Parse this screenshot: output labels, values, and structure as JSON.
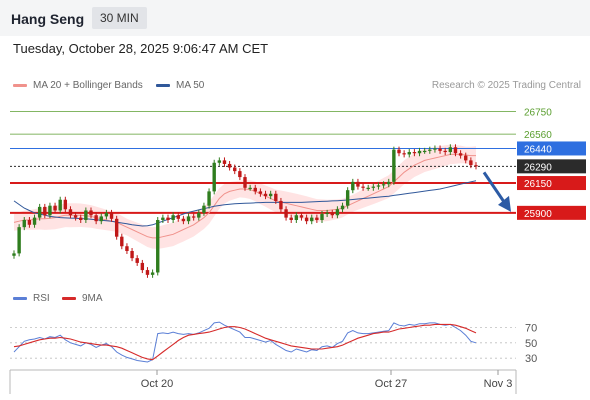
{
  "header": {
    "title": "Hang Seng",
    "timeframe": "30 MIN"
  },
  "date_line": "Tuesday, October 28, 2025 9:06:47 AM CET",
  "legend_main": [
    {
      "label": "MA 20 + Bollinger Bands",
      "color": "#f0928c"
    },
    {
      "label": "MA 50",
      "color": "#30589a"
    }
  ],
  "legend_rsi": [
    {
      "label": "RSI",
      "color": "#5b7fd6"
    },
    {
      "label": "9MA",
      "color": "#d62a2a"
    }
  ],
  "copyright": "Research © 2025 Trading Central",
  "levels": [
    {
      "label": "26750",
      "value": 26750,
      "kind": "target"
    },
    {
      "label": "26560",
      "value": 26560,
      "kind": "target"
    },
    {
      "label": "26440",
      "value": 26440,
      "kind": "pivot"
    },
    {
      "label": "26290",
      "value": 26290,
      "kind": "last"
    },
    {
      "label": "26150",
      "value": 26150,
      "kind": "support"
    },
    {
      "label": "25900",
      "value": 25900,
      "kind": "support"
    }
  ],
  "x_ticks": [
    "Oct 20",
    "Oct 27",
    "Nov 3"
  ],
  "rsi_ticks": [
    "70",
    "50",
    "30"
  ],
  "colors": {
    "target": "#5a9e2f",
    "pivot": "#2e6fe0",
    "last": "#2b2b2b",
    "support": "#d81a1a",
    "band": "#ffd9d9",
    "ma20": "#f0928c",
    "ma50": "#30589a",
    "candle_up": "#2f7d1e",
    "candle_down": "#c01818",
    "rsi": "#5b7fd6",
    "rsi_ma": "#d62a2a"
  },
  "chart_data": {
    "type": "candlestick",
    "y_range": [
      25320,
      26880
    ],
    "close": [
      25560,
      25780,
      25840,
      25800,
      25860,
      25950,
      25880,
      25960,
      25920,
      26010,
      25930,
      25880,
      25860,
      25840,
      25920,
      25880,
      25830,
      25870,
      25900,
      25850,
      25700,
      25620,
      25580,
      25520,
      25480,
      25420,
      25380,
      25400,
      25840,
      25860,
      25840,
      25880,
      25850,
      25830,
      25870,
      25860,
      25900,
      25960,
      26080,
      26320,
      26340,
      26310,
      26280,
      26250,
      26200,
      26110,
      26110,
      26080,
      26060,
      26040,
      26060,
      26000,
      25930,
      25860,
      25840,
      25880,
      25860,
      25830,
      25860,
      25840,
      25890,
      25900,
      25880,
      25930,
      25960,
      26090,
      26160,
      26120,
      26110,
      26110,
      26120,
      26130,
      26140,
      26160,
      26430,
      26400,
      26390,
      26410,
      26400,
      26420,
      26420,
      26430,
      26440,
      26420,
      26410,
      26450,
      26400,
      26380,
      26340,
      26300,
      26290
    ],
    "ma20": [
      25820,
      25830,
      25840,
      25840,
      25845,
      25850,
      25850,
      25855,
      25860,
      25870,
      25880,
      25880,
      25880,
      25880,
      25875,
      25870,
      25860,
      25850,
      25840,
      25830,
      25820,
      25800,
      25780,
      25760,
      25740,
      25720,
      25700,
      25690,
      25690,
      25700,
      25710,
      25720,
      25740,
      25760,
      25780,
      25800,
      25830,
      25860,
      25900,
      25960,
      26020,
      26060,
      26080,
      26090,
      26100,
      26100,
      26095,
      26080,
      26060,
      26040,
      26020,
      26000,
      25990,
      25980,
      25970,
      25960,
      25950,
      25940,
      25930,
      25920,
      25920,
      25920,
      25925,
      25930,
      25940,
      25960,
      25980,
      26000,
      26020,
      26040,
      26060,
      26080,
      26100,
      26120,
      26160,
      26200,
      26240,
      26270,
      26300,
      26320,
      26340,
      26350,
      26360,
      26370,
      26380,
      26390,
      26390,
      26390,
      26385,
      26380,
      26380
    ],
    "ma50": [
      26000,
      25970,
      25940,
      25920,
      25900,
      25890,
      25880,
      25870,
      25865,
      25860,
      25858,
      25856,
      25855,
      25852,
      25850,
      25846,
      25842,
      25838,
      25834,
      25830,
      25822,
      25815,
      25808,
      25800,
      25795,
      25790,
      25792,
      25800,
      25815,
      25830,
      25845,
      25860,
      25875,
      25890,
      25905,
      25915,
      25925,
      25935,
      25945,
      25955,
      25962,
      25968,
      25972,
      25976,
      25978,
      25980,
      25982,
      25984,
      25986,
      25988,
      25988,
      25988,
      25988,
      25988,
      25988,
      25988,
      25988,
      25990,
      25992,
      25994,
      25996,
      25998,
      26000,
      26002,
      26004,
      26008,
      26012,
      26016,
      26020,
      26024,
      26028,
      26032,
      26036,
      26040,
      26046,
      26052,
      26058,
      26064,
      26070,
      26076,
      26082,
      26088,
      26094,
      26100,
      26110,
      26120,
      26130,
      26140,
      26150,
      26160,
      26170
    ],
    "rsi": [
      38,
      45,
      52,
      54,
      55,
      57,
      55,
      58,
      57,
      60,
      54,
      50,
      48,
      46,
      50,
      48,
      44,
      47,
      49,
      45,
      38,
      34,
      31,
      29,
      27,
      26,
      25,
      28,
      62,
      63,
      62,
      64,
      62,
      61,
      62,
      61,
      63,
      66,
      69,
      76,
      77,
      73,
      70,
      67,
      64,
      57,
      57,
      55,
      53,
      51,
      53,
      48,
      44,
      40,
      38,
      42,
      40,
      38,
      41,
      40,
      45,
      46,
      44,
      49,
      52,
      63,
      66,
      63,
      62,
      62,
      63,
      64,
      65,
      66,
      76,
      73,
      72,
      74,
      73,
      75,
      75,
      76,
      76,
      74,
      73,
      74,
      70,
      66,
      60,
      52,
      50
    ],
    "rsi_ma": [
      45,
      46,
      48,
      50,
      52,
      54,
      55,
      56,
      56,
      57,
      56,
      55,
      53,
      51,
      50,
      49,
      48,
      47,
      47,
      46,
      45,
      43,
      40,
      37,
      34,
      31,
      29,
      28,
      33,
      38,
      43,
      48,
      53,
      57,
      60,
      61,
      62,
      63,
      64,
      66,
      68,
      70,
      71,
      71,
      70,
      68,
      65,
      62,
      59,
      56,
      54,
      52,
      50,
      48,
      46,
      45,
      44,
      43,
      42,
      42,
      42,
      43,
      44,
      45,
      47,
      50,
      53,
      56,
      58,
      60,
      62,
      63,
      64,
      64,
      66,
      68,
      69,
      70,
      71,
      72,
      73,
      73,
      74,
      74,
      74,
      74,
      73,
      71,
      69,
      66,
      63
    ]
  }
}
